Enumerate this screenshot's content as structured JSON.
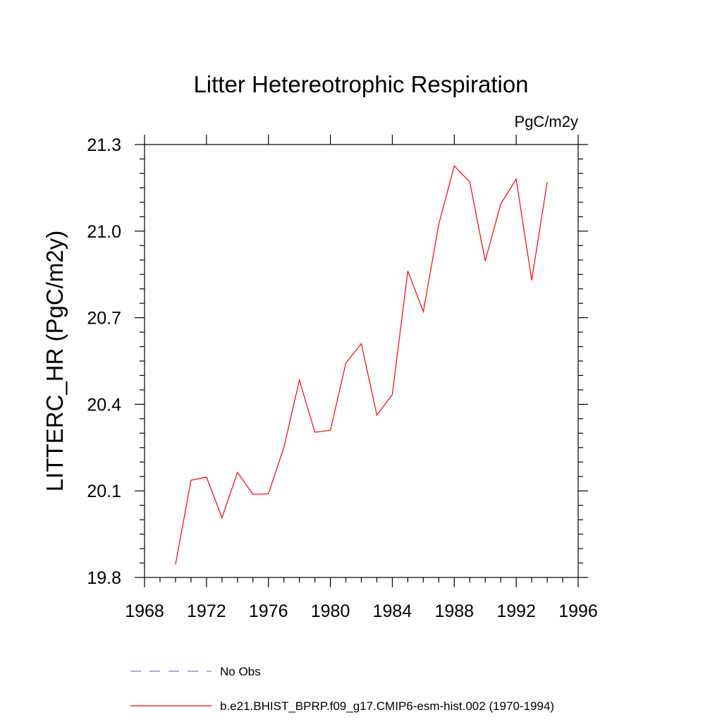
{
  "chart_data": {
    "type": "line",
    "title": "Litter Hetereotrophic Respiration",
    "units": "PgC/m2y",
    "xlabel": "",
    "ylabel": "LITTERC_HR  (PgC/m2y)",
    "xlim": [
      1968,
      1996
    ],
    "ylim": [
      19.8,
      21.3
    ],
    "xticks": [
      1968,
      1972,
      1976,
      1980,
      1984,
      1988,
      1992,
      1996
    ],
    "xtick_labels": [
      "1968",
      "1972",
      "1976",
      "1980",
      "1984",
      "1988",
      "1992",
      "1996"
    ],
    "yticks": [
      19.8,
      20.1,
      20.4,
      20.7,
      21.0,
      21.3
    ],
    "ytick_labels": [
      "19.8",
      "20.1",
      "20.4",
      "20.7",
      "21.0",
      "21.3"
    ],
    "series": [
      {
        "name": "b.e21.BHIST_BPRP.f09_g17.CMIP6-esm-hist.002 (1970-1994)",
        "color": "#ff0000",
        "style": "solid",
        "x": [
          1970,
          1971,
          1972,
          1973,
          1974,
          1975,
          1976,
          1977,
          1978,
          1979,
          1980,
          1981,
          1982,
          1983,
          1984,
          1985,
          1986,
          1987,
          1988,
          1989,
          1990,
          1991,
          1992,
          1993,
          1994
        ],
        "y": [
          19.845,
          20.137,
          20.148,
          20.007,
          20.164,
          20.088,
          20.09,
          20.251,
          20.484,
          20.303,
          20.31,
          20.543,
          20.61,
          20.362,
          20.434,
          20.862,
          20.721,
          21.024,
          21.226,
          21.17,
          20.897,
          21.094,
          21.18,
          20.83,
          21.17
        ]
      }
    ],
    "legend": [
      {
        "label": "No Obs",
        "color": "#7b7bd6",
        "style": "dashed"
      },
      {
        "label": "b.e21.BHIST_BPRP.f09_g17.CMIP6-esm-hist.002 (1970-1994)",
        "color": "#ff0000",
        "style": "solid"
      }
    ],
    "legend_position": "bottom",
    "grid": false
  }
}
